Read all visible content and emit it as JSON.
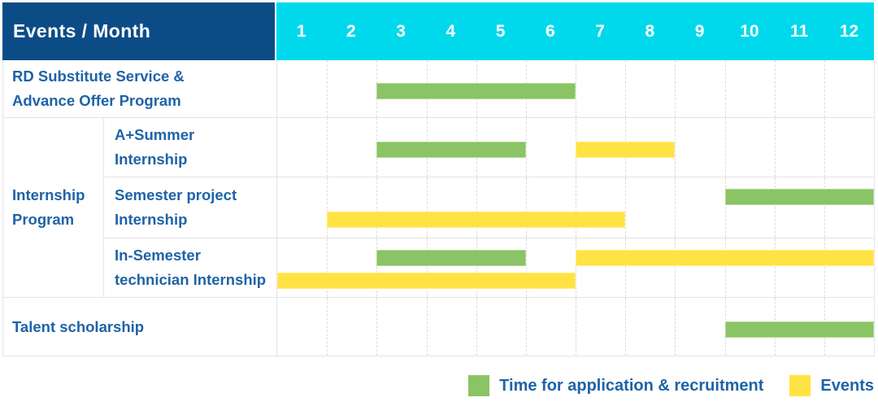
{
  "header": {
    "title": "Events / Month",
    "months": [
      "1",
      "2",
      "3",
      "4",
      "5",
      "6",
      "7",
      "8",
      "9",
      "10",
      "11",
      "12"
    ]
  },
  "legend": {
    "items": [
      {
        "label": "Time for application & recruitment",
        "color": "green"
      },
      {
        "label": "Events",
        "color": "yellow"
      }
    ]
  },
  "colors": {
    "navy": "#0c4c86",
    "cyan": "#00d9ec",
    "text": "#1e63a7",
    "green": "#8ac464",
    "yellow": "#ffe344",
    "grid": "#e4e4e8"
  },
  "chart_data": {
    "type": "bar",
    "variant": "gantt-timeline",
    "corner_header": "Events / Month",
    "x_axis_title": "Month",
    "x_labels": [
      "1",
      "2",
      "3",
      "4",
      "5",
      "6",
      "7",
      "8",
      "9",
      "10",
      "11",
      "12"
    ],
    "x_range": [
      1,
      12
    ],
    "grid": "on",
    "legend_position": "bottom-right",
    "series": [
      {
        "name": "Time for application & recruitment",
        "color": "green"
      },
      {
        "name": "Events",
        "color": "yellow"
      }
    ],
    "rows": [
      {
        "group": "",
        "label": "RD Substitute Service & Advance Offer Program",
        "label_lines": [
          "RD Substitute Service &",
          "Advance Offer Program"
        ],
        "tracks": [
          [
            {
              "series": "Time for application & recruitment",
              "color": "green",
              "start_month": 3,
              "end_month": 6
            }
          ]
        ]
      },
      {
        "group": "Internship Program",
        "label": "A+Summer Internship",
        "label_lines": [
          "A+Summer",
          "Internship"
        ],
        "tracks": [
          [
            {
              "series": "Time for application & recruitment",
              "color": "green",
              "start_month": 3,
              "end_month": 5
            },
            {
              "series": "Events",
              "color": "yellow",
              "start_month": 7,
              "end_month": 8
            }
          ]
        ]
      },
      {
        "group": "Internship Program",
        "label": "Semester project Internship",
        "label_lines": [
          "Semester project",
          "Internship"
        ],
        "tracks": [
          [
            {
              "series": "Time for application & recruitment",
              "color": "green",
              "start_month": 10,
              "end_month": 12
            }
          ],
          [
            {
              "series": "Events",
              "color": "yellow",
              "start_month": 2,
              "end_month": 7
            }
          ]
        ]
      },
      {
        "group": "Internship Program",
        "label": "In-Semester technician Internship",
        "label_lines": [
          "In-Semester",
          "technician Internship"
        ],
        "tracks": [
          [
            {
              "series": "Time for application & recruitment",
              "color": "green",
              "start_month": 3,
              "end_month": 5
            },
            {
              "series": "Events",
              "color": "yellow",
              "start_month": 7,
              "end_month": 12
            }
          ],
          [
            {
              "series": "Events",
              "color": "yellow",
              "start_month": 1,
              "end_month": 6
            }
          ]
        ]
      },
      {
        "group": "",
        "label": "Talent scholarship",
        "label_lines": [
          "Talent scholarship"
        ],
        "tracks": [
          [
            {
              "series": "Time for application & recruitment",
              "color": "green",
              "start_month": 10,
              "end_month": 12
            }
          ]
        ]
      }
    ],
    "group_label": "Internship Program",
    "group_label_lines": [
      "Internship",
      "Program"
    ]
  }
}
